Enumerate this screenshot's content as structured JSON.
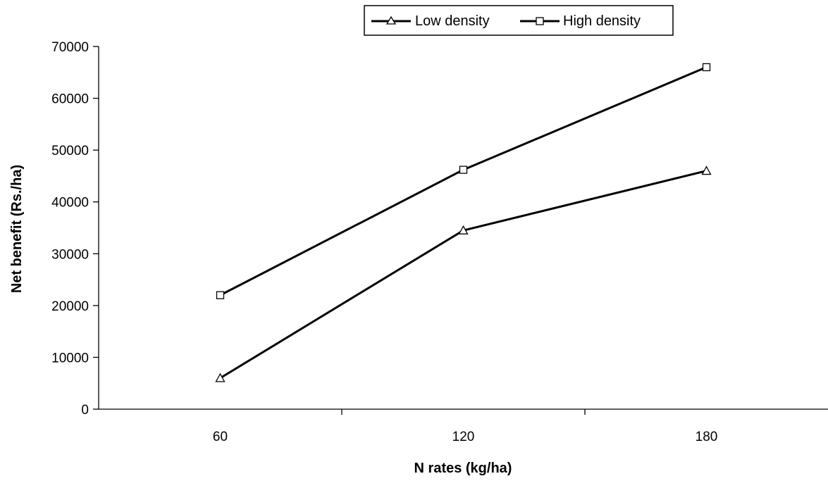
{
  "chart_data": {
    "type": "line",
    "title": "",
    "xlabel": "N rates (kg/ha)",
    "ylabel": "Net benefit (Rs./ha)",
    "categories": [
      "60",
      "120",
      "180"
    ],
    "ylim": [
      0,
      70000
    ],
    "yticks": [
      "0",
      "10000",
      "20000",
      "30000",
      "40000",
      "50000",
      "60000",
      "70000"
    ],
    "grid": false,
    "legend_position": "top",
    "series": [
      {
        "name": "Low density",
        "marker": "triangle",
        "color": "#000000",
        "values": [
          6000,
          34500,
          46000
        ]
      },
      {
        "name": "High density",
        "marker": "square",
        "color": "#000000",
        "values": [
          22000,
          46200,
          66000
        ]
      }
    ]
  }
}
